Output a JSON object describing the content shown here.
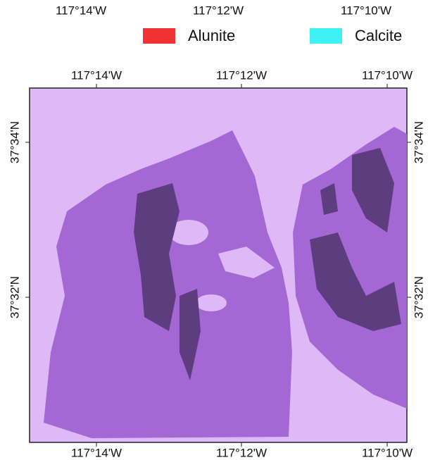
{
  "top_strip": {
    "lon_labels": [
      "117°14'W",
      "117°12'W",
      "117°10'W"
    ]
  },
  "legend": [
    {
      "label": "Alunite",
      "color": "#f03232"
    },
    {
      "label": "Calcite",
      "color": "#3ff0f5"
    }
  ],
  "map": {
    "top_labels": [
      "117°14'W",
      "117°12'W",
      "117°10'W"
    ],
    "bottom_labels": [
      "117°14'W",
      "117°12'W",
      "117°10'W"
    ],
    "left_labels": [
      "37°34'N",
      "37°32'N"
    ],
    "right_labels": [
      "37°34'N",
      "37°32'N"
    ]
  }
}
